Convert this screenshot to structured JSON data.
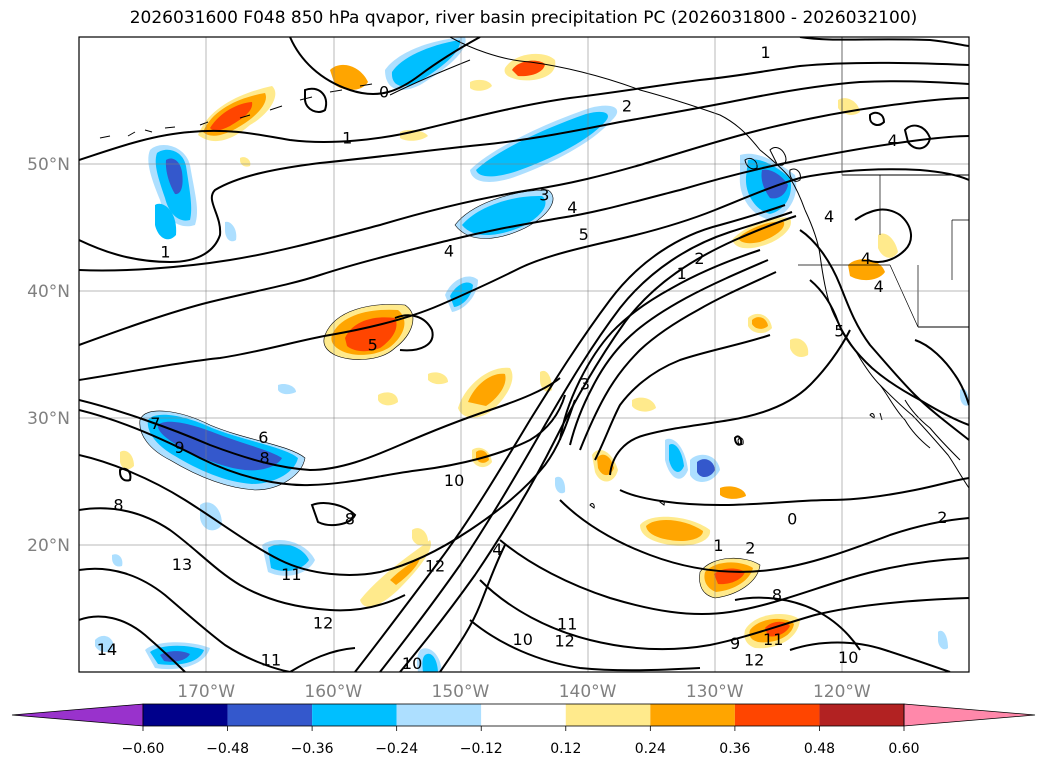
{
  "title": "2026031600 F048 850 hPa qvapor, river basin precipitation PC (2026031800 - 2026032100)",
  "map": {
    "lon_range": [
      -180,
      -110
    ],
    "lat_range": [
      10,
      60
    ],
    "lon_ticks": [
      {
        "value": -170,
        "label": "170°W"
      },
      {
        "value": -160,
        "label": "160°W"
      },
      {
        "value": -150,
        "label": "150°W"
      },
      {
        "value": -140,
        "label": "140°W"
      },
      {
        "value": -130,
        "label": "130°W"
      },
      {
        "value": -120,
        "label": "120°W"
      }
    ],
    "lat_ticks": [
      {
        "value": 20,
        "label": "20°N"
      },
      {
        "value": 30,
        "label": "30°N"
      },
      {
        "value": 40,
        "label": "40°N"
      },
      {
        "value": 50,
        "label": "50°N"
      }
    ],
    "grid": true,
    "contour_labels": [
      {
        "text": "1",
        "lon": -126,
        "lat": 58.8
      },
      {
        "text": "0",
        "lon": -156,
        "lat": 55.7
      },
      {
        "text": "1",
        "lon": -158.9,
        "lat": 52.1
      },
      {
        "text": "2",
        "lon": -136.9,
        "lat": 54.6
      },
      {
        "text": "4",
        "lon": -116,
        "lat": 51.9
      },
      {
        "text": "3",
        "lon": -143.4,
        "lat": 47.6
      },
      {
        "text": "4",
        "lon": -141.2,
        "lat": 46.6
      },
      {
        "text": "5",
        "lon": -140.3,
        "lat": 44.5
      },
      {
        "text": "4",
        "lon": -150.9,
        "lat": 43.2
      },
      {
        "text": "1",
        "lon": -173.2,
        "lat": 43.1
      },
      {
        "text": "1",
        "lon": -132.6,
        "lat": 41.4
      },
      {
        "text": "2",
        "lon": -131.2,
        "lat": 42.6
      },
      {
        "text": "4",
        "lon": -121,
        "lat": 45.9
      },
      {
        "text": "4",
        "lon": -118.1,
        "lat": 42.6
      },
      {
        "text": "4",
        "lon": -117.1,
        "lat": 40.4
      },
      {
        "text": "5",
        "lon": -156.9,
        "lat": 35.8
      },
      {
        "text": "5",
        "lon": -120.2,
        "lat": 36.9
      },
      {
        "text": "3",
        "lon": -140.2,
        "lat": 32.7
      },
      {
        "text": "6",
        "lon": -165.5,
        "lat": 28.5
      },
      {
        "text": "7",
        "lon": -174,
        "lat": 29.6
      },
      {
        "text": "8",
        "lon": -165.4,
        "lat": 26.9
      },
      {
        "text": "9",
        "lon": -172.1,
        "lat": 27.7
      },
      {
        "text": "8",
        "lon": -176.9,
        "lat": 23.2
      },
      {
        "text": "10",
        "lon": -150.5,
        "lat": 25.1
      },
      {
        "text": "8",
        "lon": -158.7,
        "lat": 22.1
      },
      {
        "text": "13",
        "lon": -171.9,
        "lat": 18.5
      },
      {
        "text": "11",
        "lon": -163.3,
        "lat": 17.7
      },
      {
        "text": "12",
        "lon": -152,
        "lat": 18.4
      },
      {
        "text": "4",
        "lon": -147.1,
        "lat": 19.7
      },
      {
        "text": "1",
        "lon": -129.7,
        "lat": 20.0
      },
      {
        "text": "2",
        "lon": -127.2,
        "lat": 19.8
      },
      {
        "text": "0",
        "lon": -123.9,
        "lat": 22.1
      },
      {
        "text": "2",
        "lon": -112.1,
        "lat": 22.2
      },
      {
        "text": "8",
        "lon": -125.1,
        "lat": 16.1
      },
      {
        "text": "12",
        "lon": -160.8,
        "lat": 13.9
      },
      {
        "text": "11",
        "lon": -141.6,
        "lat": 13.8
      },
      {
        "text": "12",
        "lon": -141.8,
        "lat": 12.5
      },
      {
        "text": "10",
        "lon": -145.1,
        "lat": 12.6
      },
      {
        "text": "9",
        "lon": -128.4,
        "lat": 12.3
      },
      {
        "text": "11",
        "lon": -125.4,
        "lat": 12.6
      },
      {
        "text": "12",
        "lon": -126.9,
        "lat": 11.0
      },
      {
        "text": "10",
        "lon": -119.5,
        "lat": 11.2
      },
      {
        "text": "14",
        "lon": -177.8,
        "lat": 11.8
      },
      {
        "text": "11",
        "lon": -164.9,
        "lat": 11.0
      },
      {
        "text": "10",
        "lon": -153.8,
        "lat": 10.7
      }
    ]
  },
  "colorbar": {
    "levels": [
      "−0.60",
      "−0.48",
      "−0.36",
      "−0.24",
      "−0.12",
      "0.12",
      "0.24",
      "0.36",
      "0.48",
      "0.60"
    ],
    "colors": [
      "#9932CC",
      "#00008B",
      "#3458CC",
      "#00BFFF",
      "#ADDFFF",
      "#FFFFFF",
      "#FFEA8C",
      "#FFA500",
      "#FF4500",
      "#B22222",
      "#FF88AA"
    ]
  }
}
